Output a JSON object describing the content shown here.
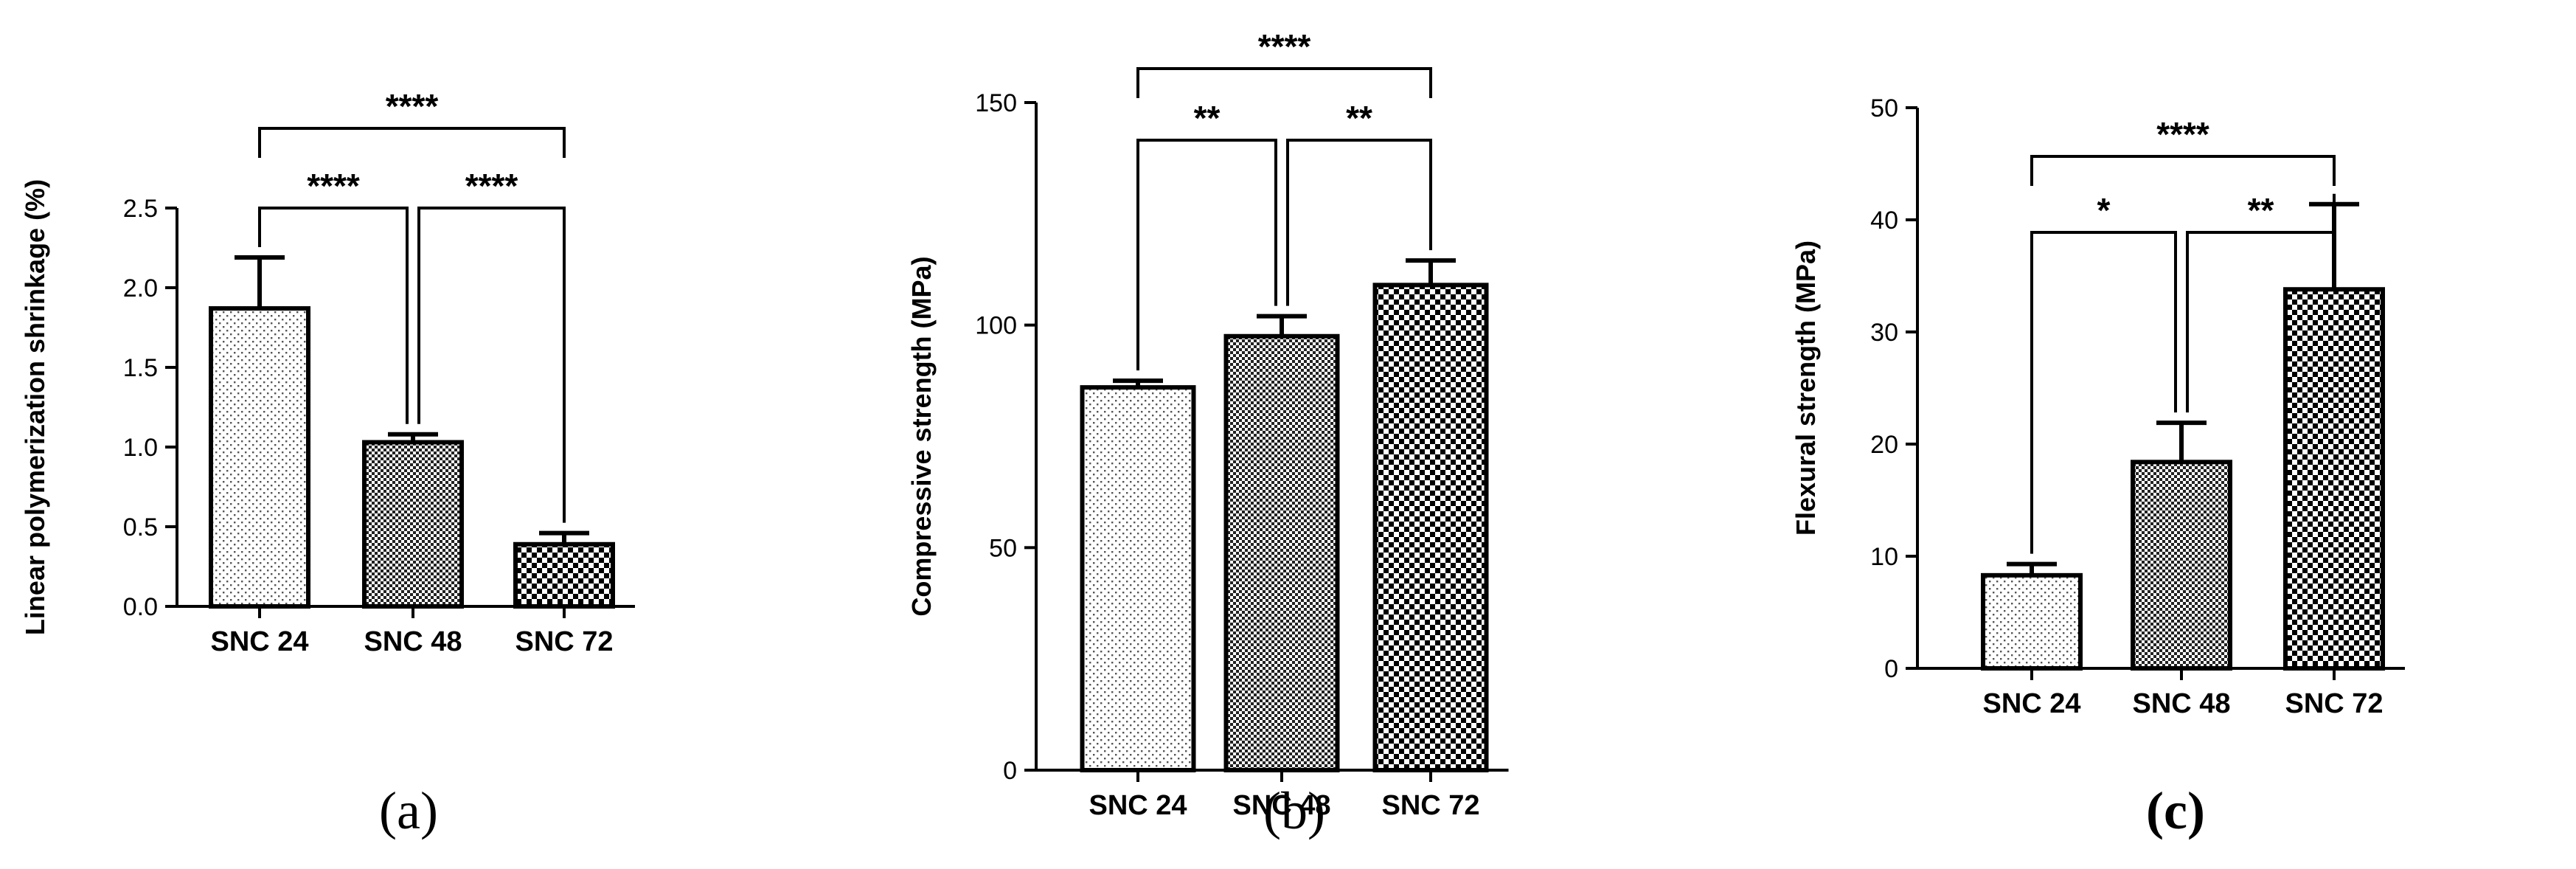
{
  "chart_data": [
    {
      "type": "bar",
      "panel_label": "(a)",
      "categories": [
        "SNC 24",
        "SNC 48",
        "SNC 72"
      ],
      "values": [
        1.87,
        1.03,
        0.39
      ],
      "error": [
        0.32,
        0.05,
        0.07
      ],
      "ylabel": "Linear polymerization shrinkage (%)",
      "ylim": [
        0,
        2.5
      ],
      "yticks": [
        0.0,
        0.5,
        1.0,
        1.5,
        2.0,
        2.5
      ],
      "ytick_labels": [
        "0.0",
        "0.5",
        "1.0",
        "1.5",
        "2.0",
        "2.5"
      ],
      "patterns": [
        "dots-sparse",
        "checker-fine",
        "checker-coarse"
      ],
      "brackets": [
        {
          "from": 0,
          "to": 1,
          "level": 0,
          "label": "****"
        },
        {
          "from": 1,
          "to": 2,
          "level": 0,
          "label": "****"
        },
        {
          "from": 0,
          "to": 2,
          "level": 1,
          "label": "****"
        }
      ]
    },
    {
      "type": "bar",
      "panel_label": "(b)",
      "categories": [
        "SNC 24",
        "SNC 48",
        "SNC 72"
      ],
      "values": [
        86,
        97.5,
        109
      ],
      "error": [
        1.5,
        4.5,
        5.5
      ],
      "ylabel": "Compressive strength (MPa)",
      "ylim": [
        0,
        150
      ],
      "yticks": [
        0,
        50,
        100,
        150
      ],
      "ytick_labels": [
        "0",
        "50",
        "100",
        "150"
      ],
      "patterns": [
        "dots-sparse",
        "checker-fine",
        "checker-coarse"
      ],
      "brackets": [
        {
          "from": 0,
          "to": 1,
          "level": 0,
          "label": "**"
        },
        {
          "from": 1,
          "to": 2,
          "level": 0,
          "label": "**"
        },
        {
          "from": 0,
          "to": 2,
          "level": 1,
          "label": "****"
        }
      ]
    },
    {
      "type": "bar",
      "panel_label": "(c)",
      "categories": [
        "SNC 24",
        "SNC 48",
        "SNC 72"
      ],
      "values": [
        8.3,
        18.4,
        33.8
      ],
      "error": [
        1.0,
        3.5,
        7.6
      ],
      "ylabel": "Flexural strength (MPa)",
      "ylim": [
        0,
        50
      ],
      "yticks": [
        0,
        10,
        20,
        30,
        40,
        50
      ],
      "ytick_labels": [
        "0",
        "10",
        "20",
        "30",
        "40",
        "50"
      ],
      "patterns": [
        "dots-sparse",
        "checker-fine",
        "checker-coarse"
      ],
      "brackets": [
        {
          "from": 0,
          "to": 1,
          "level": 0,
          "label": "*"
        },
        {
          "from": 1,
          "to": 2,
          "level": 0,
          "label": "**"
        },
        {
          "from": 0,
          "to": 2,
          "level": 1,
          "label": "****"
        }
      ]
    }
  ]
}
